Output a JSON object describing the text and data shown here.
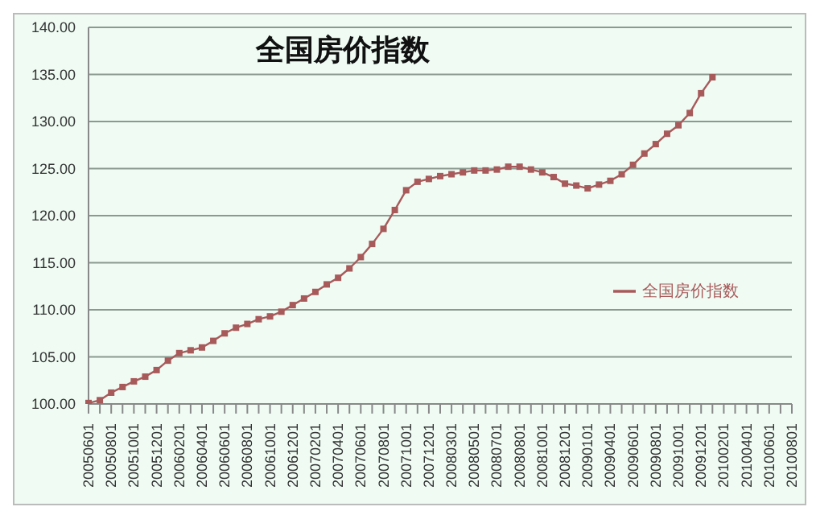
{
  "chart_data": {
    "type": "line",
    "title": "全国房价指数",
    "categories": [
      "20050601",
      null,
      "20050801",
      null,
      "20051001",
      null,
      "20051201",
      null,
      "20060201",
      null,
      "20060401",
      null,
      "20060601",
      null,
      "20060801",
      null,
      "20061001",
      null,
      "20061201",
      null,
      "20070201",
      null,
      "20070401",
      null,
      "20070601",
      null,
      "20070801",
      null,
      "20071001",
      null,
      "20071201",
      null,
      "20080301",
      null,
      "20080501",
      null,
      "20080701",
      null,
      "20080801",
      null,
      "20081001",
      null,
      "20081201",
      null,
      "20090101",
      null,
      "20090401",
      null,
      "20090601",
      null,
      "20090801",
      null,
      "20091001",
      null,
      "20091201",
      null,
      "20100201",
      null,
      "20100401",
      null,
      "20100601",
      null,
      "20100801"
    ],
    "series": [
      {
        "name": "全国房价指数",
        "color": "#a85a5a",
        "values": [
          100.1,
          100.4,
          101.2,
          101.8,
          102.4,
          102.9,
          103.6,
          104.6,
          105.4,
          105.7,
          106.0,
          106.7,
          107.5,
          108.1,
          108.5,
          109.0,
          109.3,
          109.8,
          110.5,
          111.2,
          111.9,
          112.7,
          113.4,
          114.4,
          115.6,
          117.0,
          118.6,
          120.6,
          122.7,
          123.6,
          123.9,
          124.2,
          124.4,
          124.6,
          124.8,
          124.8,
          124.9,
          125.2,
          125.2,
          124.9,
          124.6,
          124.1,
          123.4,
          123.2,
          122.9,
          123.3,
          123.7,
          124.4,
          125.4,
          126.6,
          127.6,
          128.7,
          129.6,
          130.9,
          133.0,
          134.7,
          null,
          null,
          null,
          null,
          null,
          null,
          null
        ]
      }
    ],
    "ylim": [
      100,
      140
    ],
    "yticks": [
      {
        "value": 100,
        "label": "100.00"
      },
      {
        "value": 105,
        "label": "105.00"
      },
      {
        "value": 110,
        "label": "110.00"
      },
      {
        "value": 115,
        "label": "115.00"
      },
      {
        "value": 120,
        "label": "120.00"
      },
      {
        "value": 125,
        "label": "125.00"
      },
      {
        "value": 130,
        "label": "130.00"
      },
      {
        "value": 135,
        "label": "135.00"
      },
      {
        "value": 140,
        "label": "140.00"
      }
    ],
    "grid": "y",
    "legend": "right",
    "marker": "square",
    "line_style": "solid"
  }
}
